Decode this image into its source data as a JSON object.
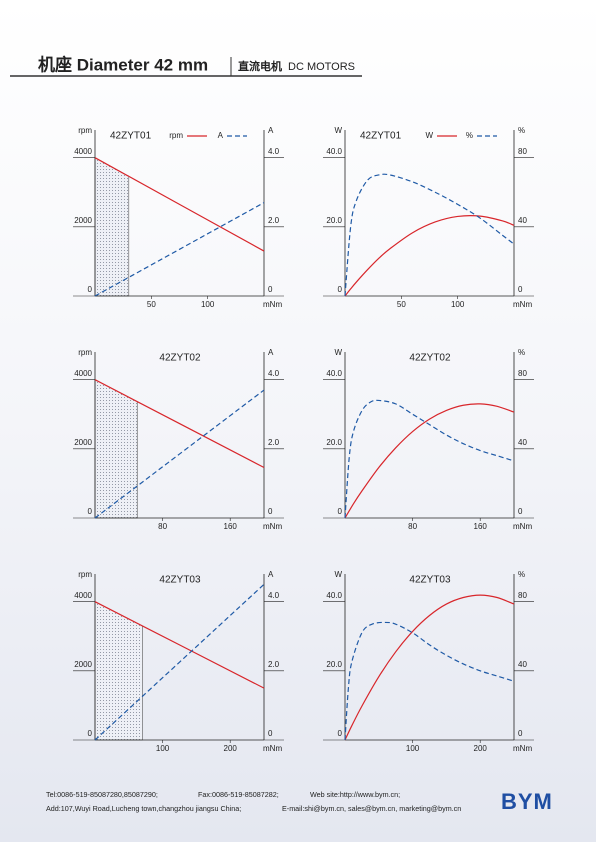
{
  "header": {
    "title": "机座 Diameter 42 mm",
    "subtitle_cn": "直流电机",
    "subtitle": "DC MOTORS"
  },
  "chart_data": [
    {
      "type": "line",
      "title": "42ZYT01",
      "legend": true,
      "x_label": "mNm",
      "y_label": "rpm",
      "y2_label": "A",
      "xlim": [
        0,
        150
      ],
      "xticks": [
        50,
        100
      ],
      "ylim": [
        0,
        4800
      ],
      "yticks": [
        0,
        2000,
        4000
      ],
      "y2lim": [
        0,
        4.8
      ],
      "y2ticks": [
        0,
        {
          "value": 2,
          "label": "2.0"
        },
        {
          "value": 4,
          "label": "4.0"
        }
      ],
      "shaded_range": [
        0,
        30
      ],
      "series": [
        {
          "name": "rpm",
          "color": "#d8262b",
          "dash": false,
          "x": [
            0,
            150
          ],
          "values": [
            4000,
            1300
          ]
        },
        {
          "name": "A",
          "color": "#1f5aa6",
          "dash": true,
          "axis": "y2",
          "x": [
            0,
            150
          ],
          "values": [
            0,
            2.7
          ]
        }
      ]
    },
    {
      "type": "line",
      "title": "42ZYT01",
      "legend": true,
      "x_label": "mNm",
      "y_label": "W",
      "y2_label": "%",
      "xlim": [
        0,
        150
      ],
      "xticks": [
        50,
        100
      ],
      "ylim": [
        0,
        48
      ],
      "yticks": [
        0,
        {
          "value": 20,
          "label": "20.0"
        },
        {
          "value": 40,
          "label": "40.0"
        }
      ],
      "y2lim": [
        0,
        96
      ],
      "y2ticks": [
        0,
        40,
        80
      ],
      "series": [
        {
          "name": "W",
          "color": "#d8262b",
          "dash": false,
          "x": [
            0,
            5,
            10,
            20,
            30,
            40,
            60,
            80,
            100,
            120,
            140,
            150
          ],
          "values": [
            0,
            2.05,
            4.0,
            7.6,
            10.9,
            13.7,
            18.3,
            21.4,
            23.0,
            23.1,
            21.7,
            20.4
          ]
        },
        {
          "name": "%",
          "color": "#1f5aa6",
          "dash": true,
          "axis": "y2",
          "x": [
            0,
            5,
            10,
            20,
            30,
            40,
            60,
            80,
            100,
            120,
            140,
            150
          ],
          "values": [
            0,
            40,
            55,
            67,
            70,
            70,
            66,
            60,
            53,
            45,
            35,
            30
          ]
        }
      ]
    },
    {
      "type": "line",
      "title": "42ZYT02",
      "legend": false,
      "x_label": "mNm",
      "y_label": "rpm",
      "y2_label": "A",
      "xlim": [
        0,
        200
      ],
      "xticks": [
        80,
        160
      ],
      "ylim": [
        0,
        4800
      ],
      "yticks": [
        0,
        2000,
        4000
      ],
      "y2lim": [
        0,
        4.8
      ],
      "y2ticks": [
        0,
        {
          "value": 2,
          "label": "2.0"
        },
        {
          "value": 4,
          "label": "4.0"
        }
      ],
      "shaded_range": [
        0,
        50
      ],
      "series": [
        {
          "color": "#d8262b",
          "dash": false,
          "x": [
            0,
            200
          ],
          "values": [
            4000,
            1460
          ]
        },
        {
          "color": "#1f5aa6",
          "dash": true,
          "axis": "y2",
          "x": [
            0,
            200
          ],
          "values": [
            0,
            3.7
          ]
        }
      ]
    },
    {
      "type": "line",
      "title": "42ZYT02",
      "legend": false,
      "x_label": "mNm",
      "y_label": "W",
      "y2_label": "%",
      "xlim": [
        0,
        200
      ],
      "xticks": [
        80,
        160
      ],
      "ylim": [
        0,
        48
      ],
      "yticks": [
        0,
        {
          "value": 20,
          "label": "20.0"
        },
        {
          "value": 40,
          "label": "40.0"
        }
      ],
      "y2lim": [
        0,
        96
      ],
      "y2ticks": [
        0,
        40,
        80
      ],
      "series": [
        {
          "color": "#d8262b",
          "dash": false,
          "x": [
            0,
            10,
            20,
            40,
            60,
            80,
            100,
            120,
            140,
            160,
            180,
            200
          ],
          "values": [
            0,
            4.1,
            7.8,
            14.6,
            20.3,
            25.0,
            28.6,
            31.1,
            32.6,
            33.0,
            32.3,
            30.6
          ]
        },
        {
          "color": "#1f5aa6",
          "dash": true,
          "axis": "y2",
          "x": [
            0,
            5,
            10,
            20,
            30,
            40,
            60,
            80,
            100,
            120,
            140,
            160,
            180,
            200
          ],
          "values": [
            0,
            35,
            50,
            62,
            67,
            68,
            66,
            60,
            54,
            48,
            43,
            39,
            36,
            33
          ]
        }
      ]
    },
    {
      "type": "line",
      "title": "42ZYT03",
      "legend": false,
      "x_label": "mNm",
      "y_label": "rpm",
      "y2_label": "A",
      "xlim": [
        0,
        250
      ],
      "xticks": [
        100,
        200
      ],
      "ylim": [
        0,
        4800
      ],
      "yticks": [
        0,
        2000,
        4000
      ],
      "y2lim": [
        0,
        4.8
      ],
      "y2ticks": [
        0,
        {
          "value": 2,
          "label": "2.0"
        },
        {
          "value": 4,
          "label": "4.0"
        }
      ],
      "shaded_range": [
        0,
        70
      ],
      "series": [
        {
          "color": "#d8262b",
          "dash": false,
          "x": [
            0,
            250
          ],
          "values": [
            4000,
            1500
          ]
        },
        {
          "color": "#1f5aa6",
          "dash": true,
          "axis": "y2",
          "x": [
            0,
            250
          ],
          "values": [
            0,
            4.5
          ]
        }
      ]
    },
    {
      "type": "line",
      "title": "42ZYT03",
      "legend": false,
      "x_label": "mNm",
      "y_label": "W",
      "y2_label": "%",
      "xlim": [
        0,
        250
      ],
      "xticks": [
        100,
        200
      ],
      "ylim": [
        0,
        48
      ],
      "yticks": [
        0,
        {
          "value": 20,
          "label": "20.0"
        },
        {
          "value": 40,
          "label": "40.0"
        }
      ],
      "y2lim": [
        0,
        96
      ],
      "y2ticks": [
        0,
        40,
        80
      ],
      "series": [
        {
          "color": "#d8262b",
          "dash": false,
          "x": [
            0,
            10,
            25,
            50,
            75,
            100,
            125,
            150,
            175,
            200,
            225,
            250
          ],
          "values": [
            0,
            4.1,
            9.8,
            18.3,
            25.5,
            31.4,
            36.0,
            39.3,
            41.2,
            41.9,
            41.2,
            39.3
          ]
        },
        {
          "color": "#1f5aa6",
          "dash": true,
          "axis": "y2",
          "x": [
            0,
            5,
            10,
            25,
            40,
            60,
            75,
            100,
            125,
            150,
            175,
            200,
            225,
            250
          ],
          "values": [
            0,
            30,
            45,
            62,
            67,
            68,
            67,
            62,
            55,
            49,
            44,
            40,
            37,
            34
          ]
        }
      ]
    }
  ],
  "footer": {
    "tel": "Tel:0086-519-85087280,85087290;",
    "fax": "Fax:0086-519-85087282;",
    "web": "Web site:http://www.bym.cn;",
    "address": "Add:107,Wuyi Road,Lucheng town,changzhou jiangsu China;",
    "email": "E-mail:shi@bym.cn, sales@bym.cn, marketing@bym.cn",
    "logo": "BYM"
  }
}
